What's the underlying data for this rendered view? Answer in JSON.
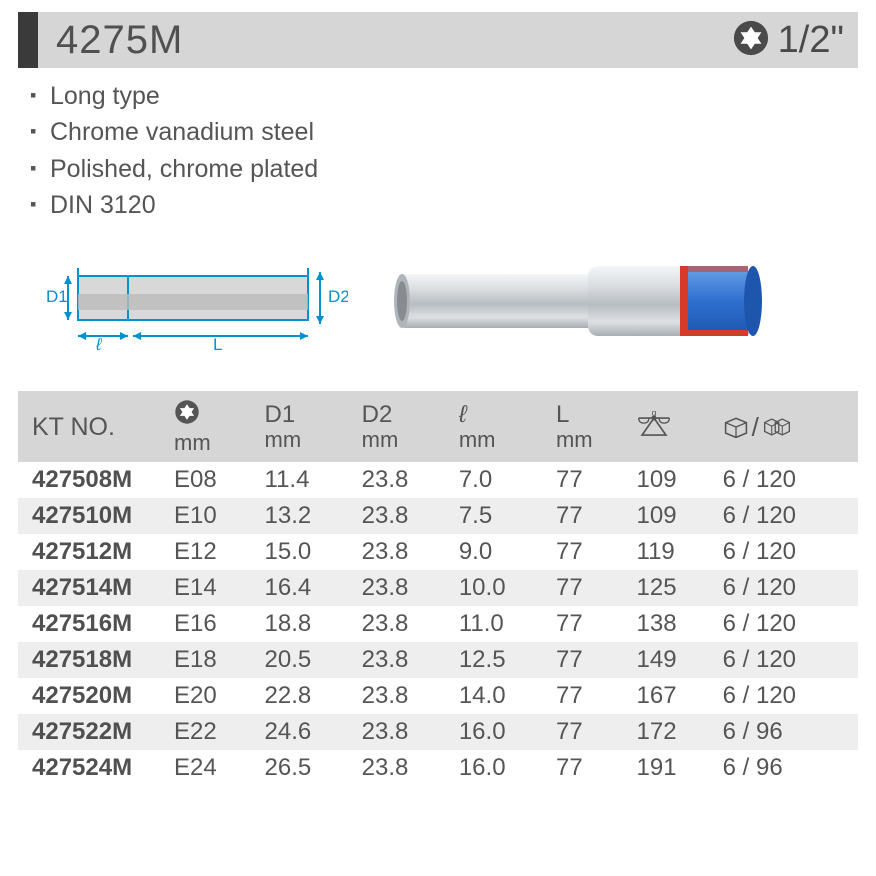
{
  "header": {
    "model": "4275M",
    "drive_size": "1/2\"",
    "title_bg": "#d6d6d6",
    "bar_mark_color": "#3a3a3a",
    "text_color": "#505050"
  },
  "bullets": [
    "Long type",
    "Chrome vanadium steel",
    "Polished, chrome plated",
    "DIN 3120"
  ],
  "diagram": {
    "stroke": "#0093d0",
    "fill": "#d8d8d8",
    "labels": {
      "D1": "D1",
      "D2": "D2",
      "L": "L",
      "l": "ℓ"
    }
  },
  "photo": {
    "body_color": "#c8ccd0",
    "highlight": "#f2f4f6",
    "band_blue": "#2f6fcf",
    "band_red": "#d63b2a"
  },
  "table": {
    "header_bg": "#d6d6d6",
    "row_alt_bg": "#eeeeee",
    "text_color": "#555555",
    "kt_color": "#505050",
    "font_size": 24,
    "columns": [
      {
        "key": "kt",
        "label": "KT NO.",
        "sub": ""
      },
      {
        "key": "size",
        "label": "",
        "sub": "mm",
        "icon": "torx"
      },
      {
        "key": "d1",
        "label": "D1",
        "sub": "mm"
      },
      {
        "key": "d2",
        "label": "D2",
        "sub": "mm"
      },
      {
        "key": "l",
        "label": "ℓ",
        "sub": "mm"
      },
      {
        "key": "L",
        "label": "L",
        "sub": "mm"
      },
      {
        "key": "wt",
        "label": "",
        "sub": "",
        "icon": "weight"
      },
      {
        "key": "pack",
        "label": "",
        "sub": "",
        "icon": "pack"
      }
    ],
    "rows": [
      {
        "kt": "427508M",
        "size": "E08",
        "d1": "11.4",
        "d2": "23.8",
        "l": "7.0",
        "L": "77",
        "wt": "109",
        "pack": "6 / 120"
      },
      {
        "kt": "427510M",
        "size": "E10",
        "d1": "13.2",
        "d2": "23.8",
        "l": "7.5",
        "L": "77",
        "wt": "109",
        "pack": "6 / 120"
      },
      {
        "kt": "427512M",
        "size": "E12",
        "d1": "15.0",
        "d2": "23.8",
        "l": "9.0",
        "L": "77",
        "wt": "119",
        "pack": "6 / 120"
      },
      {
        "kt": "427514M",
        "size": "E14",
        "d1": "16.4",
        "d2": "23.8",
        "l": "10.0",
        "L": "77",
        "wt": "125",
        "pack": "6 / 120"
      },
      {
        "kt": "427516M",
        "size": "E16",
        "d1": "18.8",
        "d2": "23.8",
        "l": "11.0",
        "L": "77",
        "wt": "138",
        "pack": "6 / 120"
      },
      {
        "kt": "427518M",
        "size": "E18",
        "d1": "20.5",
        "d2": "23.8",
        "l": "12.5",
        "L": "77",
        "wt": "149",
        "pack": "6 / 120"
      },
      {
        "kt": "427520M",
        "size": "E20",
        "d1": "22.8",
        "d2": "23.8",
        "l": "14.0",
        "L": "77",
        "wt": "167",
        "pack": "6 / 120"
      },
      {
        "kt": "427522M",
        "size": "E22",
        "d1": "24.6",
        "d2": "23.8",
        "l": "16.0",
        "L": "77",
        "wt": "172",
        "pack": "6 / 96"
      },
      {
        "kt": "427524M",
        "size": "E24",
        "d1": "26.5",
        "d2": "23.8",
        "l": "16.0",
        "L": "77",
        "wt": "191",
        "pack": "6 / 96"
      }
    ]
  }
}
